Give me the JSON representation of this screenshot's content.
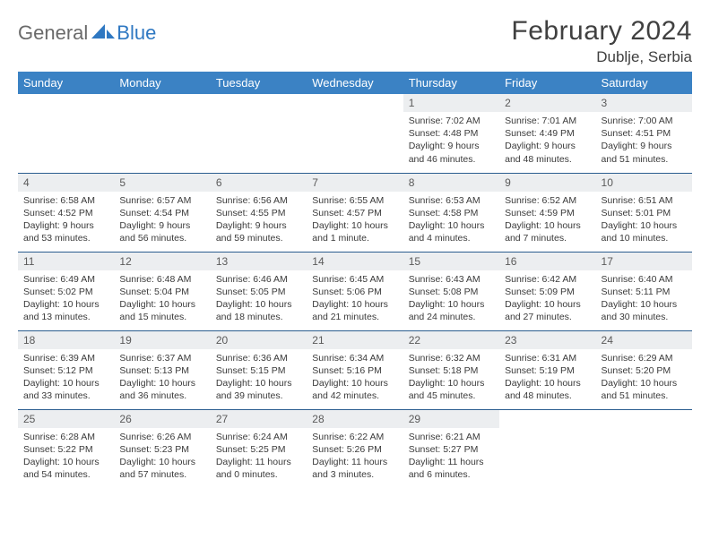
{
  "logo": {
    "text1": "General",
    "text2": "Blue"
  },
  "title": "February 2024",
  "location": "Dublje, Serbia",
  "colors": {
    "header_bg": "#3b82c4",
    "header_text": "#ffffff",
    "daynum_bg": "#eceef0",
    "row_divider": "#2a5d8f",
    "title_color": "#404040",
    "body_text": "#3a3a3a",
    "logo_gray": "#6a6a6a",
    "logo_blue": "#2f78c2"
  },
  "weekdays": [
    "Sunday",
    "Monday",
    "Tuesday",
    "Wednesday",
    "Thursday",
    "Friday",
    "Saturday"
  ],
  "weeks": [
    [
      {
        "empty": true
      },
      {
        "empty": true
      },
      {
        "empty": true
      },
      {
        "empty": true
      },
      {
        "day": "1",
        "sunrise": "Sunrise: 7:02 AM",
        "sunset": "Sunset: 4:48 PM",
        "daylight": "Daylight: 9 hours and 46 minutes."
      },
      {
        "day": "2",
        "sunrise": "Sunrise: 7:01 AM",
        "sunset": "Sunset: 4:49 PM",
        "daylight": "Daylight: 9 hours and 48 minutes."
      },
      {
        "day": "3",
        "sunrise": "Sunrise: 7:00 AM",
        "sunset": "Sunset: 4:51 PM",
        "daylight": "Daylight: 9 hours and 51 minutes."
      }
    ],
    [
      {
        "day": "4",
        "sunrise": "Sunrise: 6:58 AM",
        "sunset": "Sunset: 4:52 PM",
        "daylight": "Daylight: 9 hours and 53 minutes."
      },
      {
        "day": "5",
        "sunrise": "Sunrise: 6:57 AM",
        "sunset": "Sunset: 4:54 PM",
        "daylight": "Daylight: 9 hours and 56 minutes."
      },
      {
        "day": "6",
        "sunrise": "Sunrise: 6:56 AM",
        "sunset": "Sunset: 4:55 PM",
        "daylight": "Daylight: 9 hours and 59 minutes."
      },
      {
        "day": "7",
        "sunrise": "Sunrise: 6:55 AM",
        "sunset": "Sunset: 4:57 PM",
        "daylight": "Daylight: 10 hours and 1 minute."
      },
      {
        "day": "8",
        "sunrise": "Sunrise: 6:53 AM",
        "sunset": "Sunset: 4:58 PM",
        "daylight": "Daylight: 10 hours and 4 minutes."
      },
      {
        "day": "9",
        "sunrise": "Sunrise: 6:52 AM",
        "sunset": "Sunset: 4:59 PM",
        "daylight": "Daylight: 10 hours and 7 minutes."
      },
      {
        "day": "10",
        "sunrise": "Sunrise: 6:51 AM",
        "sunset": "Sunset: 5:01 PM",
        "daylight": "Daylight: 10 hours and 10 minutes."
      }
    ],
    [
      {
        "day": "11",
        "sunrise": "Sunrise: 6:49 AM",
        "sunset": "Sunset: 5:02 PM",
        "daylight": "Daylight: 10 hours and 13 minutes."
      },
      {
        "day": "12",
        "sunrise": "Sunrise: 6:48 AM",
        "sunset": "Sunset: 5:04 PM",
        "daylight": "Daylight: 10 hours and 15 minutes."
      },
      {
        "day": "13",
        "sunrise": "Sunrise: 6:46 AM",
        "sunset": "Sunset: 5:05 PM",
        "daylight": "Daylight: 10 hours and 18 minutes."
      },
      {
        "day": "14",
        "sunrise": "Sunrise: 6:45 AM",
        "sunset": "Sunset: 5:06 PM",
        "daylight": "Daylight: 10 hours and 21 minutes."
      },
      {
        "day": "15",
        "sunrise": "Sunrise: 6:43 AM",
        "sunset": "Sunset: 5:08 PM",
        "daylight": "Daylight: 10 hours and 24 minutes."
      },
      {
        "day": "16",
        "sunrise": "Sunrise: 6:42 AM",
        "sunset": "Sunset: 5:09 PM",
        "daylight": "Daylight: 10 hours and 27 minutes."
      },
      {
        "day": "17",
        "sunrise": "Sunrise: 6:40 AM",
        "sunset": "Sunset: 5:11 PM",
        "daylight": "Daylight: 10 hours and 30 minutes."
      }
    ],
    [
      {
        "day": "18",
        "sunrise": "Sunrise: 6:39 AM",
        "sunset": "Sunset: 5:12 PM",
        "daylight": "Daylight: 10 hours and 33 minutes."
      },
      {
        "day": "19",
        "sunrise": "Sunrise: 6:37 AM",
        "sunset": "Sunset: 5:13 PM",
        "daylight": "Daylight: 10 hours and 36 minutes."
      },
      {
        "day": "20",
        "sunrise": "Sunrise: 6:36 AM",
        "sunset": "Sunset: 5:15 PM",
        "daylight": "Daylight: 10 hours and 39 minutes."
      },
      {
        "day": "21",
        "sunrise": "Sunrise: 6:34 AM",
        "sunset": "Sunset: 5:16 PM",
        "daylight": "Daylight: 10 hours and 42 minutes."
      },
      {
        "day": "22",
        "sunrise": "Sunrise: 6:32 AM",
        "sunset": "Sunset: 5:18 PM",
        "daylight": "Daylight: 10 hours and 45 minutes."
      },
      {
        "day": "23",
        "sunrise": "Sunrise: 6:31 AM",
        "sunset": "Sunset: 5:19 PM",
        "daylight": "Daylight: 10 hours and 48 minutes."
      },
      {
        "day": "24",
        "sunrise": "Sunrise: 6:29 AM",
        "sunset": "Sunset: 5:20 PM",
        "daylight": "Daylight: 10 hours and 51 minutes."
      }
    ],
    [
      {
        "day": "25",
        "sunrise": "Sunrise: 6:28 AM",
        "sunset": "Sunset: 5:22 PM",
        "daylight": "Daylight: 10 hours and 54 minutes."
      },
      {
        "day": "26",
        "sunrise": "Sunrise: 6:26 AM",
        "sunset": "Sunset: 5:23 PM",
        "daylight": "Daylight: 10 hours and 57 minutes."
      },
      {
        "day": "27",
        "sunrise": "Sunrise: 6:24 AM",
        "sunset": "Sunset: 5:25 PM",
        "daylight": "Daylight: 11 hours and 0 minutes."
      },
      {
        "day": "28",
        "sunrise": "Sunrise: 6:22 AM",
        "sunset": "Sunset: 5:26 PM",
        "daylight": "Daylight: 11 hours and 3 minutes."
      },
      {
        "day": "29",
        "sunrise": "Sunrise: 6:21 AM",
        "sunset": "Sunset: 5:27 PM",
        "daylight": "Daylight: 11 hours and 6 minutes."
      },
      {
        "empty": true
      },
      {
        "empty": true
      }
    ]
  ]
}
